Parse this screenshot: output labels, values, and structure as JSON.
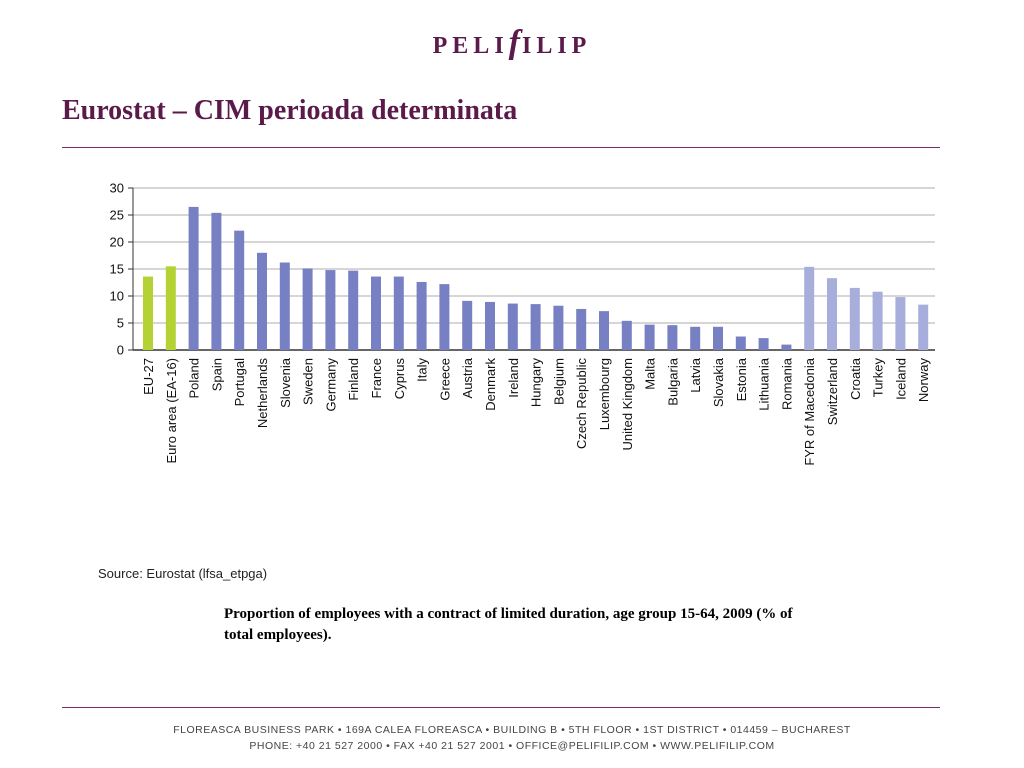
{
  "logo": {
    "part1": "PELI",
    "part2": "f",
    "part3": "ILIP"
  },
  "title": "Eurostat – CIM perioada determinata",
  "source": "Source: Eurostat (lfsa_etpga)",
  "caption": "Proportion of employees with a contract of limited duration, age group 15-64, 2009 (% of total employees).",
  "footer": {
    "line1": "FLOREASCA BUSINESS PARK • 169A CALEA FLOREASCA • BUILDING B • 5TH FLOOR • 1ST DISTRICT • 014459 – BUCHAREST",
    "line2": "PHONE: +40 21 527 2000  • FAX +40 21 527 2001 • OFFICE@PELIFILIP.COM • WWW.PELIFILIP.COM"
  },
  "colors": {
    "brand": "#5a1a4a",
    "aggregate": "#b4d234",
    "eu_member": "#7880c4",
    "non_eu": "#a8aedc",
    "grid": "#c8c8c8"
  },
  "chart_data": {
    "type": "bar",
    "title": "",
    "xlabel": "",
    "ylabel": "",
    "ylim": [
      0,
      30
    ],
    "yticks": [
      0,
      5,
      10,
      15,
      20,
      25,
      30
    ],
    "grid": true,
    "categories": [
      "EU-27",
      "Euro area (EA-16)",
      "Poland",
      "Spain",
      "Portugal",
      "Netherlands",
      "Slovenia",
      "Sweden",
      "Germany",
      "Finland",
      "France",
      "Cyprus",
      "Italy",
      "Greece",
      "Austria",
      "Denmark",
      "Ireland",
      "Hungary",
      "Belgium",
      "Czech Republic",
      "Luxembourg",
      "United Kingdom",
      "Malta",
      "Bulgaria",
      "Latvia",
      "Slovakia",
      "Estonia",
      "Lithuania",
      "Romania",
      "FYR of Macedonia",
      "Switzerland",
      "Croatia",
      "Turkey",
      "Iceland",
      "Norway"
    ],
    "values": [
      13.6,
      15.5,
      26.5,
      25.4,
      22.1,
      18.0,
      16.2,
      15.1,
      14.8,
      14.7,
      13.6,
      13.6,
      12.6,
      12.2,
      9.1,
      8.9,
      8.6,
      8.5,
      8.2,
      7.6,
      7.2,
      5.4,
      4.7,
      4.6,
      4.3,
      4.3,
      2.5,
      2.2,
      1.0,
      15.4,
      13.3,
      11.5,
      10.8,
      9.8,
      8.4
    ],
    "groups": [
      "aggregate",
      "aggregate",
      "eu_member",
      "eu_member",
      "eu_member",
      "eu_member",
      "eu_member",
      "eu_member",
      "eu_member",
      "eu_member",
      "eu_member",
      "eu_member",
      "eu_member",
      "eu_member",
      "eu_member",
      "eu_member",
      "eu_member",
      "eu_member",
      "eu_member",
      "eu_member",
      "eu_member",
      "eu_member",
      "eu_member",
      "eu_member",
      "eu_member",
      "eu_member",
      "eu_member",
      "eu_member",
      "eu_member",
      "non_eu",
      "non_eu",
      "non_eu",
      "non_eu",
      "non_eu",
      "non_eu"
    ]
  }
}
